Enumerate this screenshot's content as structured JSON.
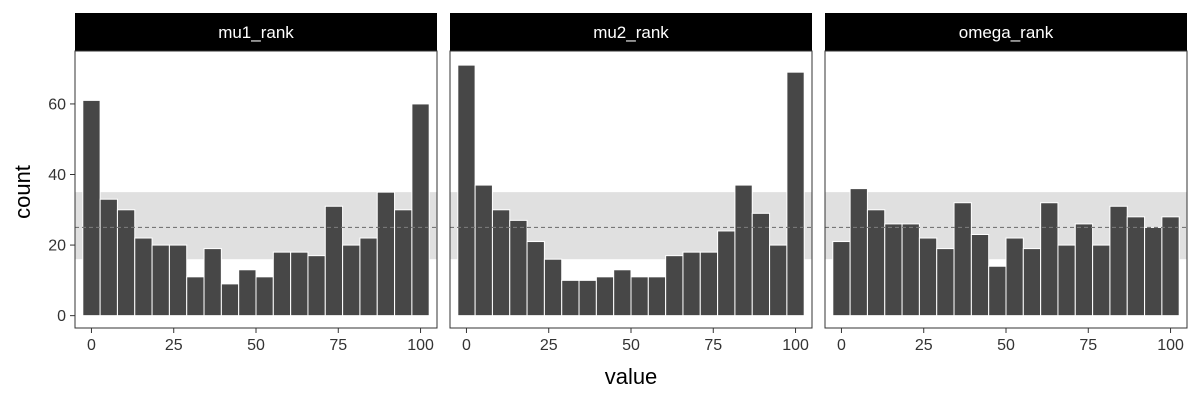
{
  "chart_data": {
    "type": "bar",
    "xlabel": "value",
    "ylabel": "count",
    "xlim": [
      -5,
      105
    ],
    "ylim": [
      -3.5,
      75
    ],
    "x_ticks": [
      0,
      25,
      50,
      75,
      100
    ],
    "y_ticks": [
      0,
      20,
      40,
      60
    ],
    "bin_width": 5.26,
    "band": {
      "low": 16,
      "high": 35,
      "color": "#e0e0e0"
    },
    "reference_line": {
      "y": 25,
      "style": "dashed",
      "color": "#777777"
    },
    "bar_color": "#474747",
    "panels": [
      {
        "name": "mu1_rank",
        "x": [
          0,
          5.26,
          10.53,
          15.79,
          21.05,
          26.32,
          31.58,
          36.84,
          42.11,
          47.37,
          52.63,
          57.89,
          63.16,
          68.42,
          73.68,
          78.95,
          84.21,
          89.47,
          94.74,
          100
        ],
        "values": [
          61,
          33,
          30,
          22,
          20,
          20,
          11,
          19,
          9,
          13,
          11,
          18,
          18,
          17,
          31,
          20,
          22,
          35,
          30,
          60
        ]
      },
      {
        "name": "mu2_rank",
        "x": [
          0,
          5.26,
          10.53,
          15.79,
          21.05,
          26.32,
          31.58,
          36.84,
          42.11,
          47.37,
          52.63,
          57.89,
          63.16,
          68.42,
          73.68,
          78.95,
          84.21,
          89.47,
          94.74,
          100
        ],
        "values": [
          71,
          37,
          30,
          27,
          21,
          16,
          10,
          10,
          11,
          13,
          11,
          11,
          17,
          18,
          18,
          24,
          37,
          29,
          20,
          69
        ]
      },
      {
        "name": "omega_rank",
        "x": [
          0,
          5.26,
          10.53,
          15.79,
          21.05,
          26.32,
          31.58,
          36.84,
          42.11,
          47.37,
          52.63,
          57.89,
          63.16,
          68.42,
          73.68,
          78.95,
          84.21,
          89.47,
          94.74,
          100
        ],
        "values": [
          21,
          36,
          30,
          26,
          26,
          22,
          19,
          32,
          23,
          14,
          22,
          19,
          32,
          20,
          26,
          20,
          31,
          28,
          25,
          28
        ]
      }
    ]
  }
}
